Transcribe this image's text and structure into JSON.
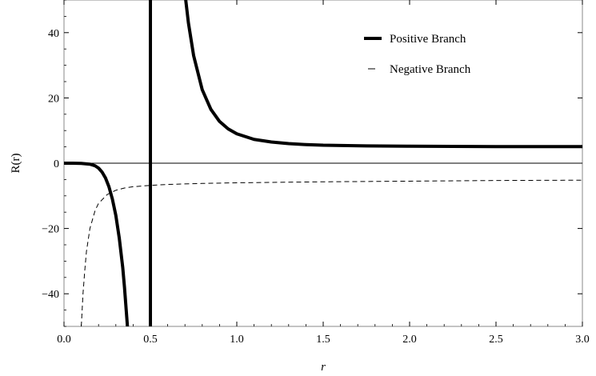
{
  "chart_data": {
    "type": "line",
    "xlabel": "r",
    "ylabel": "R(r)",
    "xlim": [
      0,
      3.0
    ],
    "ylim": [
      -50,
      50
    ],
    "x_ticks": [
      "0.0",
      "0.5",
      "1.0",
      "1.5",
      "2.0",
      "2.5",
      "3.0"
    ],
    "y_ticks": [
      "−40",
      "−20",
      "0",
      "20",
      "40"
    ],
    "grid": false,
    "legend_position": "top-right",
    "vertical_line": 0.5,
    "series": [
      {
        "name": "Positive Branch",
        "style": "solid-thick",
        "segments": [
          [
            [
              0.0,
              0.0
            ],
            [
              0.05,
              -0.01
            ],
            [
              0.1,
              -0.05
            ],
            [
              0.15,
              -0.3
            ],
            [
              0.18,
              -0.8
            ],
            [
              0.2,
              -1.5
            ],
            [
              0.22,
              -2.7
            ],
            [
              0.24,
              -4.5
            ],
            [
              0.26,
              -7.2
            ],
            [
              0.28,
              -11
            ],
            [
              0.3,
              -16
            ],
            [
              0.32,
              -23
            ],
            [
              0.34,
              -32
            ],
            [
              0.35,
              -38
            ],
            [
              0.36,
              -45
            ],
            [
              0.37,
              -52
            ]
          ],
          [
            [
              0.7,
              52
            ],
            [
              0.72,
              43
            ],
            [
              0.75,
              33
            ],
            [
              0.8,
              22.5
            ],
            [
              0.85,
              16.5
            ],
            [
              0.9,
              12.8
            ],
            [
              0.95,
              10.5
            ],
            [
              1.0,
              9.0
            ],
            [
              1.1,
              7.3
            ],
            [
              1.2,
              6.5
            ],
            [
              1.3,
              6.0
            ],
            [
              1.4,
              5.7
            ],
            [
              1.5,
              5.5
            ],
            [
              1.75,
              5.3
            ],
            [
              2.0,
              5.2
            ],
            [
              2.5,
              5.1
            ],
            [
              3.0,
              5.1
            ]
          ]
        ]
      },
      {
        "name": "Negative Branch",
        "style": "dashed-thin",
        "segments": [
          [
            [
              0.1,
              -50
            ],
            [
              0.11,
              -40
            ],
            [
              0.12,
              -33
            ],
            [
              0.13,
              -27
            ],
            [
              0.15,
              -20
            ],
            [
              0.18,
              -14.5
            ],
            [
              0.2,
              -12.3
            ],
            [
              0.25,
              -9.6
            ],
            [
              0.3,
              -8.3
            ],
            [
              0.35,
              -7.6
            ],
            [
              0.4,
              -7.2
            ],
            [
              0.5,
              -6.8
            ],
            [
              0.6,
              -6.5
            ],
            [
              0.8,
              -6.2
            ],
            [
              1.0,
              -6.0
            ],
            [
              1.5,
              -5.7
            ],
            [
              2.0,
              -5.5
            ],
            [
              2.5,
              -5.3
            ],
            [
              3.0,
              -5.2
            ]
          ]
        ]
      }
    ]
  }
}
